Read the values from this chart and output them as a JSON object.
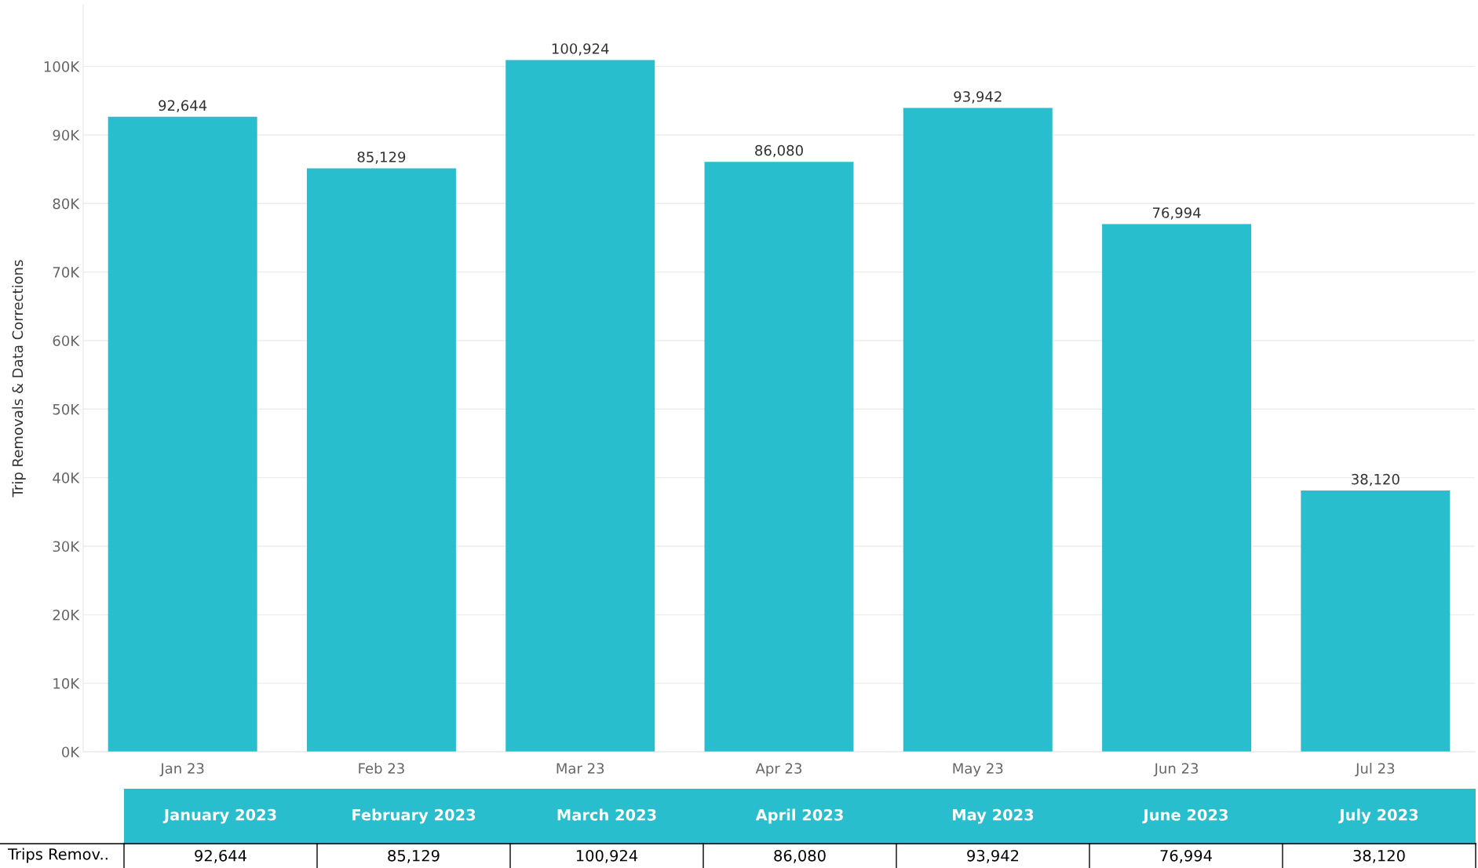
{
  "chart_data": {
    "type": "bar",
    "ylabel": "Trip Removals & Data Corrections",
    "categories": [
      "Jan 23",
      "Feb 23",
      "Mar 23",
      "Apr 23",
      "May 23",
      "Jun 23",
      "Jul 23"
    ],
    "values": [
      92644,
      85129,
      100924,
      86080,
      93942,
      76994,
      38120
    ],
    "color": "#29bece",
    "ylim": [
      0,
      109000
    ],
    "yticks": [
      {
        "value": 0,
        "label": "0K"
      },
      {
        "value": 10000,
        "label": "10K"
      },
      {
        "value": 20000,
        "label": "20K"
      },
      {
        "value": 30000,
        "label": "30K"
      },
      {
        "value": 40000,
        "label": "40K"
      },
      {
        "value": 50000,
        "label": "50K"
      },
      {
        "value": 60000,
        "label": "60K"
      },
      {
        "value": 70000,
        "label": "70K"
      },
      {
        "value": 80000,
        "label": "80K"
      },
      {
        "value": 90000,
        "label": "90K"
      },
      {
        "value": 100000,
        "label": "100K"
      }
    ],
    "grid": "y",
    "value_labels": [
      "92,644",
      "85,129",
      "100,924",
      "86,080",
      "93,942",
      "76,994",
      "38,120"
    ],
    "annotations": [
      "Trips Remov..",
      "January 2023",
      "February 2023",
      "March 2023",
      "April 2023",
      "May 2023",
      "June 2023",
      "July 2023"
    ]
  }
}
